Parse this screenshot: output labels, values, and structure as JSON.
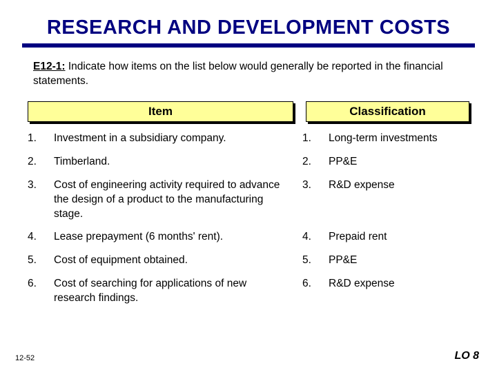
{
  "colors": {
    "title": "#000080",
    "rule": "#000080",
    "header_bg": "#ffff99",
    "header_border": "#000000",
    "text": "#000000",
    "background": "#ffffff"
  },
  "title": "RESEARCH AND DEVELOPMENT COSTS",
  "instruction": {
    "lead": "E12-1:",
    "body": "  Indicate how items on the list below would generally be reported in the financial statements."
  },
  "headers": {
    "item": "Item",
    "classification": "Classification"
  },
  "rows": [
    {
      "n1": "1.",
      "item": "Investment in a subsidiary company.",
      "n2": "1.",
      "classification": "Long-term investments"
    },
    {
      "n1": "2.",
      "item": "Timberland.",
      "n2": "2.",
      "classification": "PP&E"
    },
    {
      "n1": "3.",
      "item": "Cost of engineering activity required to advance the design of a product to the manufacturing stage.",
      "n2": "3.",
      "classification": "R&D expense"
    },
    {
      "n1": "4.",
      "item": "Lease prepayment (6 months' rent).",
      "n2": "4.",
      "classification": "Prepaid rent"
    },
    {
      "n1": "5.",
      "item": "Cost of equipment obtained.",
      "n2": "5.",
      "classification": "PP&E"
    },
    {
      "n1": "6.",
      "item": "Cost of searching for applications of new research findings.",
      "n2": "6.",
      "classification": "R&D expense"
    }
  ],
  "footer": {
    "left": "12-52",
    "right": "LO 8"
  },
  "typography": {
    "title_fontsize": 29,
    "body_fontsize": 15.5,
    "header_fontsize": 17,
    "footer_left_fontsize": 11,
    "footer_right_fontsize": 16
  }
}
